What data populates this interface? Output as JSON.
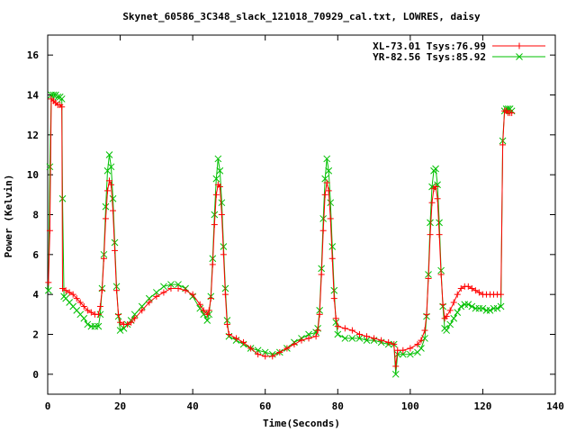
{
  "chart_data": {
    "type": "line",
    "title": "Skynet_60586_3C348_slack_121018_70929_cal.txt, LOWRES, daisy",
    "xlabel": "Time(Seconds)",
    "ylabel": "Power (Kelvin)",
    "xlim": [
      0,
      140
    ],
    "ylim": [
      -1,
      17
    ],
    "xticks": [
      0,
      20,
      40,
      60,
      80,
      100,
      120,
      140
    ],
    "yticks": [
      0,
      2,
      4,
      6,
      8,
      10,
      12,
      14,
      16
    ],
    "grid": false,
    "legend_position": "top-right",
    "series": [
      {
        "name": "XL-73.01 Tsys:76.99",
        "color": "#ff0000",
        "marker": "plus",
        "points": [
          [
            0.2,
            4.6
          ],
          [
            0.6,
            7.2
          ],
          [
            1.0,
            13.8
          ],
          [
            1.6,
            13.7
          ],
          [
            2.2,
            13.6
          ],
          [
            2.8,
            13.5
          ],
          [
            3.4,
            13.5
          ],
          [
            3.9,
            13.4
          ],
          [
            4.1,
            4.3
          ],
          [
            5,
            4.2
          ],
          [
            6,
            4.1
          ],
          [
            7,
            4.0
          ],
          [
            8,
            3.8
          ],
          [
            9,
            3.6
          ],
          [
            10,
            3.4
          ],
          [
            11,
            3.2
          ],
          [
            12,
            3.1
          ],
          [
            13,
            3.0
          ],
          [
            14,
            3.0
          ],
          [
            14.5,
            3.4
          ],
          [
            15,
            4.2
          ],
          [
            15.5,
            5.8
          ],
          [
            16,
            7.8
          ],
          [
            16.5,
            9.2
          ],
          [
            17,
            9.7
          ],
          [
            17.5,
            9.5
          ],
          [
            18,
            8.2
          ],
          [
            18.5,
            6.2
          ],
          [
            19,
            4.2
          ],
          [
            19.5,
            3.0
          ],
          [
            20,
            2.6
          ],
          [
            21,
            2.5
          ],
          [
            22,
            2.5
          ],
          [
            23,
            2.6
          ],
          [
            24,
            2.8
          ],
          [
            26,
            3.2
          ],
          [
            28,
            3.6
          ],
          [
            30,
            3.9
          ],
          [
            32,
            4.1
          ],
          [
            34,
            4.3
          ],
          [
            36,
            4.3
          ],
          [
            38,
            4.2
          ],
          [
            40,
            4.0
          ],
          [
            42,
            3.5
          ],
          [
            43,
            3.2
          ],
          [
            44,
            3.0
          ],
          [
            44.5,
            3.2
          ],
          [
            45,
            3.8
          ],
          [
            45.5,
            5.5
          ],
          [
            46,
            7.5
          ],
          [
            46.5,
            9.0
          ],
          [
            47,
            9.5
          ],
          [
            47.5,
            9.4
          ],
          [
            48,
            8.0
          ],
          [
            48.5,
            6.0
          ],
          [
            49,
            4.0
          ],
          [
            49.5,
            2.5
          ],
          [
            50,
            2.0
          ],
          [
            52,
            1.8
          ],
          [
            54,
            1.6
          ],
          [
            56,
            1.3
          ],
          [
            58,
            1.0
          ],
          [
            60,
            0.9
          ],
          [
            62,
            0.9
          ],
          [
            64,
            1.1
          ],
          [
            66,
            1.3
          ],
          [
            68,
            1.5
          ],
          [
            70,
            1.7
          ],
          [
            72,
            1.8
          ],
          [
            74,
            1.9
          ],
          [
            74.5,
            2.2
          ],
          [
            75,
            3.0
          ],
          [
            75.5,
            5.0
          ],
          [
            76,
            7.2
          ],
          [
            76.5,
            9.0
          ],
          [
            77,
            9.6
          ],
          [
            77.5,
            9.2
          ],
          [
            78,
            7.8
          ],
          [
            78.5,
            5.8
          ],
          [
            79,
            3.8
          ],
          [
            79.5,
            2.8
          ],
          [
            80,
            2.4
          ],
          [
            82,
            2.3
          ],
          [
            84,
            2.2
          ],
          [
            86,
            2.0
          ],
          [
            88,
            1.9
          ],
          [
            90,
            1.8
          ],
          [
            92,
            1.7
          ],
          [
            94,
            1.6
          ],
          [
            95.5,
            1.5
          ],
          [
            96,
            0.4
          ],
          [
            96.5,
            1.2
          ],
          [
            98,
            1.2
          ],
          [
            100,
            1.3
          ],
          [
            102,
            1.5
          ],
          [
            103,
            1.7
          ],
          [
            104,
            2.2
          ],
          [
            104.5,
            3.0
          ],
          [
            105,
            4.8
          ],
          [
            105.5,
            7.0
          ],
          [
            106,
            8.6
          ],
          [
            106.5,
            9.3
          ],
          [
            107,
            9.4
          ],
          [
            107.5,
            8.8
          ],
          [
            108,
            7.0
          ],
          [
            108.5,
            5.0
          ],
          [
            109,
            3.5
          ],
          [
            109.5,
            2.8
          ],
          [
            110,
            2.9
          ],
          [
            111,
            3.2
          ],
          [
            112,
            3.6
          ],
          [
            113,
            4.0
          ],
          [
            114,
            4.3
          ],
          [
            115,
            4.4
          ],
          [
            116,
            4.4
          ],
          [
            117,
            4.3
          ],
          [
            118,
            4.2
          ],
          [
            119,
            4.1
          ],
          [
            120,
            4.0
          ],
          [
            121,
            4.0
          ],
          [
            122,
            4.0
          ],
          [
            123,
            4.0
          ],
          [
            124,
            4.0
          ],
          [
            125,
            4.0
          ],
          [
            125.5,
            11.5
          ],
          [
            126,
            13.2
          ],
          [
            126.5,
            13.2
          ],
          [
            127,
            13.1
          ],
          [
            127.5,
            13.1
          ],
          [
            128,
            13.1
          ]
        ]
      },
      {
        "name": "YR-82.56 Tsys:85.92",
        "color": "#00c000",
        "marker": "cross",
        "points": [
          [
            0.2,
            4.2
          ],
          [
            0.6,
            10.4
          ],
          [
            1.0,
            14.0
          ],
          [
            1.6,
            14.0
          ],
          [
            2.2,
            14.0
          ],
          [
            2.8,
            13.9
          ],
          [
            3.4,
            13.9
          ],
          [
            3.9,
            13.8
          ],
          [
            4.1,
            8.8
          ],
          [
            4.5,
            3.9
          ],
          [
            5,
            3.8
          ],
          [
            6,
            3.6
          ],
          [
            7,
            3.4
          ],
          [
            8,
            3.2
          ],
          [
            9,
            3.0
          ],
          [
            10,
            2.8
          ],
          [
            11,
            2.5
          ],
          [
            12,
            2.4
          ],
          [
            13,
            2.4
          ],
          [
            14,
            2.4
          ],
          [
            14.5,
            3.0
          ],
          [
            15,
            4.3
          ],
          [
            15.5,
            6.0
          ],
          [
            16,
            8.4
          ],
          [
            16.5,
            10.2
          ],
          [
            17,
            11.0
          ],
          [
            17.5,
            10.4
          ],
          [
            18,
            8.8
          ],
          [
            18.5,
            6.6
          ],
          [
            19,
            4.4
          ],
          [
            19.5,
            2.9
          ],
          [
            20,
            2.2
          ],
          [
            21,
            2.3
          ],
          [
            22,
            2.5
          ],
          [
            23,
            2.7
          ],
          [
            24,
            3.0
          ],
          [
            26,
            3.4
          ],
          [
            28,
            3.8
          ],
          [
            30,
            4.1
          ],
          [
            32,
            4.4
          ],
          [
            34,
            4.5
          ],
          [
            36,
            4.5
          ],
          [
            38,
            4.3
          ],
          [
            40,
            3.9
          ],
          [
            42,
            3.3
          ],
          [
            43,
            3.0
          ],
          [
            44,
            2.7
          ],
          [
            44.5,
            3.0
          ],
          [
            45,
            3.9
          ],
          [
            45.5,
            5.8
          ],
          [
            46,
            8.0
          ],
          [
            46.5,
            9.8
          ],
          [
            47,
            10.8
          ],
          [
            47.5,
            10.2
          ],
          [
            48,
            8.6
          ],
          [
            48.5,
            6.4
          ],
          [
            49,
            4.3
          ],
          [
            49.5,
            2.7
          ],
          [
            50,
            1.9
          ],
          [
            52,
            1.7
          ],
          [
            54,
            1.5
          ],
          [
            56,
            1.3
          ],
          [
            58,
            1.2
          ],
          [
            60,
            1.1
          ],
          [
            62,
            1.0
          ],
          [
            64,
            1.1
          ],
          [
            66,
            1.3
          ],
          [
            68,
            1.6
          ],
          [
            70,
            1.8
          ],
          [
            72,
            2.0
          ],
          [
            74,
            2.1
          ],
          [
            74.5,
            2.3
          ],
          [
            75,
            3.2
          ],
          [
            75.5,
            5.3
          ],
          [
            76,
            7.8
          ],
          [
            76.5,
            9.8
          ],
          [
            77,
            10.8
          ],
          [
            77.5,
            10.2
          ],
          [
            78,
            8.6
          ],
          [
            78.5,
            6.4
          ],
          [
            79,
            4.2
          ],
          [
            79.5,
            2.6
          ],
          [
            80,
            2.0
          ],
          [
            82,
            1.8
          ],
          [
            84,
            1.8
          ],
          [
            86,
            1.8
          ],
          [
            88,
            1.7
          ],
          [
            90,
            1.7
          ],
          [
            92,
            1.6
          ],
          [
            94,
            1.5
          ],
          [
            95.5,
            1.5
          ],
          [
            96,
            0.0
          ],
          [
            96.5,
            1.0
          ],
          [
            98,
            1.0
          ],
          [
            100,
            1.0
          ],
          [
            102,
            1.1
          ],
          [
            103,
            1.3
          ],
          [
            104,
            1.8
          ],
          [
            104.5,
            2.9
          ],
          [
            105,
            5.0
          ],
          [
            105.5,
            7.6
          ],
          [
            106,
            9.4
          ],
          [
            106.5,
            10.2
          ],
          [
            107,
            10.3
          ],
          [
            107.5,
            9.5
          ],
          [
            108,
            7.6
          ],
          [
            108.5,
            5.2
          ],
          [
            109,
            3.4
          ],
          [
            109.5,
            2.3
          ],
          [
            110,
            2.2
          ],
          [
            111,
            2.5
          ],
          [
            112,
            2.8
          ],
          [
            113,
            3.1
          ],
          [
            114,
            3.4
          ],
          [
            115,
            3.5
          ],
          [
            116,
            3.5
          ],
          [
            117,
            3.4
          ],
          [
            118,
            3.3
          ],
          [
            119,
            3.3
          ],
          [
            120,
            3.3
          ],
          [
            121,
            3.2
          ],
          [
            122,
            3.2
          ],
          [
            123,
            3.3
          ],
          [
            124,
            3.3
          ],
          [
            125,
            3.4
          ],
          [
            125.5,
            11.7
          ],
          [
            126,
            13.2
          ],
          [
            126.5,
            13.3
          ],
          [
            127,
            13.3
          ],
          [
            127.5,
            13.3
          ],
          [
            128,
            13.2
          ]
        ]
      }
    ]
  }
}
